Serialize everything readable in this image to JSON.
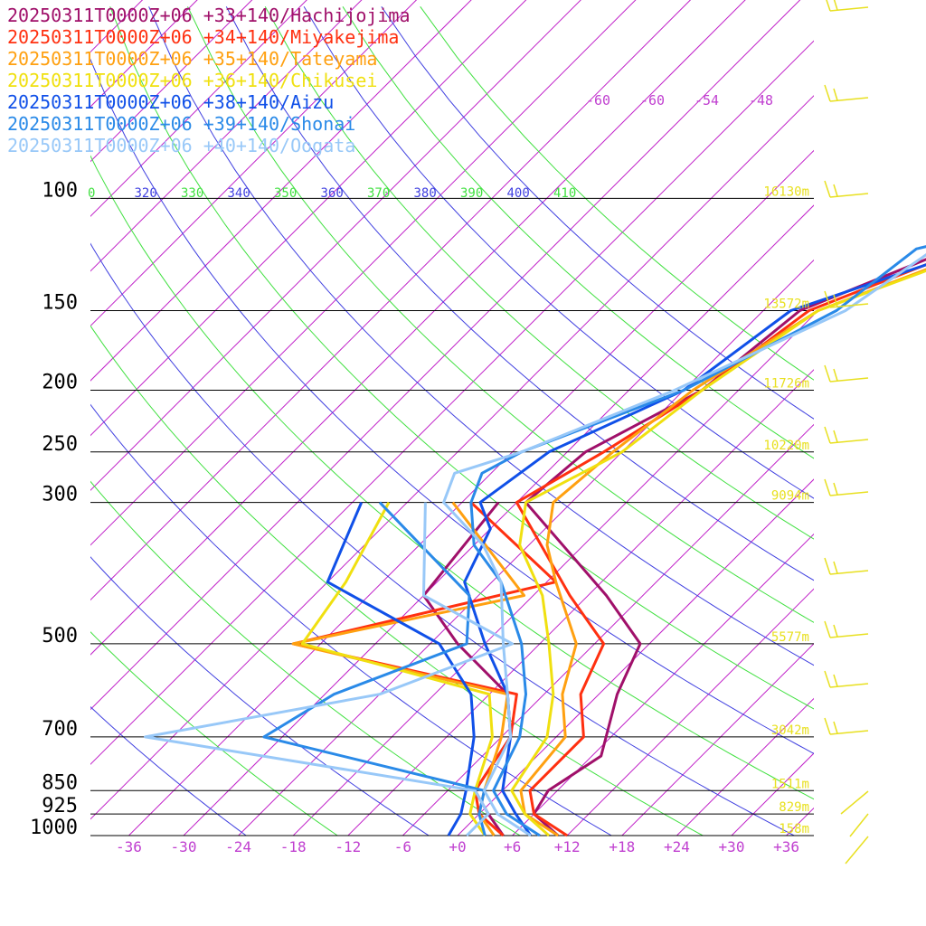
{
  "chart_data": {
    "type": "line",
    "x_ticks": [
      "-36",
      "-30",
      "-24",
      "-18",
      "-12",
      "-6",
      "+0",
      "+6",
      "+12",
      "+18",
      "+24",
      "+30",
      "+36"
    ],
    "pressure_levels": [
      "100",
      "150",
      "200",
      "250",
      "300",
      "500",
      "700",
      "850",
      "925",
      "1000"
    ],
    "height_labels": [
      {
        "p": 100,
        "text": "16130m"
      },
      {
        "p": 150,
        "text": "13572m"
      },
      {
        "p": 200,
        "text": "11726m"
      },
      {
        "p": 250,
        "text": "10220m"
      },
      {
        "p": 300,
        "text": "9094m"
      },
      {
        "p": 500,
        "text": "5577m"
      },
      {
        "p": 700,
        "text": "3042m"
      },
      {
        "p": 850,
        "text": "1511m"
      },
      {
        "p": 925,
        "text": "829m"
      },
      {
        "p": 1000,
        "text": "158m"
      }
    ],
    "theta_labels": [
      "0",
      "320",
      "330",
      "340",
      "350",
      "360",
      "370",
      "380",
      "390",
      "400",
      "410"
    ],
    "upper_isotherm_labels": [
      "-60",
      "-60",
      "-54",
      "-48"
    ],
    "series": [
      {
        "name": "20250311T0000Z+06 +33+140/Hachijojima",
        "color": "#a0106a",
        "temp": [
          [
            1000,
            11
          ],
          [
            925,
            6
          ],
          [
            850,
            5
          ],
          [
            750,
            7
          ],
          [
            600,
            2
          ],
          [
            500,
            -1
          ],
          [
            420,
            -10
          ],
          [
            300,
            -29
          ],
          [
            250,
            -28
          ],
          [
            200,
            -22
          ],
          [
            150,
            -20
          ],
          [
            100,
            -2
          ],
          [
            70,
            14
          ],
          [
            50,
            42
          ]
        ],
        "dew": [
          [
            1000,
            5
          ],
          [
            925,
            1
          ],
          [
            850,
            -3
          ],
          [
            700,
            -5
          ],
          [
            600,
            -10
          ],
          [
            500,
            -21
          ],
          [
            420,
            -30
          ],
          [
            300,
            -32
          ]
        ]
      },
      {
        "name": "20250311T0000Z+06 +34+140/Miyakejima",
        "color": "#ff3010",
        "temp": [
          [
            1000,
            12
          ],
          [
            925,
            6
          ],
          [
            850,
            3
          ],
          [
            700,
            3
          ],
          [
            600,
            -2
          ],
          [
            500,
            -5
          ],
          [
            420,
            -14
          ],
          [
            300,
            -30
          ],
          [
            250,
            -26
          ],
          [
            200,
            -22
          ],
          [
            150,
            -19
          ],
          [
            100,
            0
          ],
          [
            70,
            10
          ],
          [
            50,
            44
          ]
        ],
        "dew": [
          [
            1000,
            5
          ],
          [
            925,
            0
          ],
          [
            850,
            -3
          ],
          [
            700,
            -5
          ],
          [
            600,
            -9
          ],
          [
            500,
            -39
          ],
          [
            400,
            -17
          ],
          [
            300,
            -35
          ]
        ]
      },
      {
        "name": "20250311T0000Z+06 +35+140/Tateyama",
        "color": "#ffa010",
        "temp": [
          [
            1000,
            11
          ],
          [
            925,
            5
          ],
          [
            850,
            2
          ],
          [
            700,
            1
          ],
          [
            600,
            -4
          ],
          [
            500,
            -8
          ],
          [
            400,
            -17
          ],
          [
            350,
            -22
          ],
          [
            300,
            -26
          ],
          [
            250,
            -25
          ],
          [
            200,
            -23
          ],
          [
            150,
            -18
          ],
          [
            100,
            2
          ],
          [
            80,
            10
          ],
          [
            50,
            46
          ]
        ],
        "dew": [
          [
            1000,
            4
          ],
          [
            925,
            0
          ],
          [
            850,
            -2
          ],
          [
            700,
            -6
          ],
          [
            600,
            -10
          ],
          [
            500,
            -39
          ],
          [
            420,
            -19
          ],
          [
            300,
            -37
          ]
        ]
      },
      {
        "name": "20250311T0000Z+06 +36+140/Chikusei",
        "color": "#f0e010",
        "temp": [
          [
            1000,
            10
          ],
          [
            925,
            5
          ],
          [
            850,
            1
          ],
          [
            700,
            -1
          ],
          [
            600,
            -5
          ],
          [
            500,
            -11
          ],
          [
            420,
            -17
          ],
          [
            350,
            -25
          ],
          [
            300,
            -29
          ],
          [
            250,
            -24
          ],
          [
            200,
            -22
          ],
          [
            150,
            -18
          ],
          [
            100,
            3
          ],
          [
            80,
            13
          ],
          [
            50,
            47
          ]
        ],
        "dew": [
          [
            1000,
            3
          ],
          [
            925,
            -1
          ],
          [
            850,
            -3
          ],
          [
            700,
            -7
          ],
          [
            600,
            -12
          ],
          [
            500,
            -38
          ],
          [
            400,
            -40
          ],
          [
            300,
            -44
          ]
        ]
      },
      {
        "name": "20250311T0000Z+06 +38+140/Aizu",
        "color": "#1050e8",
        "temp": [
          [
            1000,
            8
          ],
          [
            925,
            4
          ],
          [
            850,
            0
          ],
          [
            700,
            -5
          ],
          [
            600,
            -10
          ],
          [
            500,
            -18
          ],
          [
            400,
            -27
          ],
          [
            330,
            -30
          ],
          [
            300,
            -34
          ],
          [
            250,
            -32
          ],
          [
            200,
            -24
          ],
          [
            150,
            -21
          ],
          [
            100,
            3
          ],
          [
            70,
            16
          ],
          [
            50,
            49
          ]
        ],
        "dew": [
          [
            1000,
            -1
          ],
          [
            925,
            -2
          ],
          [
            850,
            -4
          ],
          [
            700,
            -9
          ],
          [
            600,
            -14
          ],
          [
            500,
            -23
          ],
          [
            400,
            -42
          ],
          [
            300,
            -47
          ]
        ]
      },
      {
        "name": "20250311T0000Z+06 +39+140/Shonai",
        "color": "#2a8ae8",
        "temp": [
          [
            1000,
            9
          ],
          [
            925,
            3
          ],
          [
            850,
            -1
          ],
          [
            700,
            -4
          ],
          [
            600,
            -8
          ],
          [
            500,
            -14
          ],
          [
            400,
            -23
          ],
          [
            350,
            -30
          ],
          [
            300,
            -35
          ],
          [
            270,
            -37
          ],
          [
            250,
            -35
          ],
          [
            200,
            -24
          ],
          [
            150,
            -16
          ],
          [
            120,
            -14
          ],
          [
            100,
            4
          ],
          [
            70,
            17
          ],
          [
            50,
            51
          ]
        ],
        "dew": [
          [
            1000,
            3
          ],
          [
            925,
            0
          ],
          [
            850,
            -2
          ],
          [
            700,
            -32
          ],
          [
            600,
            -29
          ],
          [
            500,
            -20
          ],
          [
            420,
            -25
          ],
          [
            300,
            -45
          ]
        ]
      },
      {
        "name": "20250311T0000Z+06 +40+140/Oogata",
        "color": "#98c8f8",
        "temp": [
          [
            1000,
            8
          ],
          [
            925,
            2
          ],
          [
            850,
            -2
          ],
          [
            700,
            -5
          ],
          [
            600,
            -10
          ],
          [
            500,
            -16
          ],
          [
            400,
            -23
          ],
          [
            350,
            -29
          ],
          [
            300,
            -38
          ],
          [
            270,
            -40
          ],
          [
            250,
            -35
          ],
          [
            200,
            -25
          ],
          [
            150,
            -15
          ],
          [
            120,
            -12
          ],
          [
            100,
            5
          ],
          [
            70,
            16
          ],
          [
            50,
            52
          ]
        ],
        "dew": [
          [
            1000,
            1
          ],
          [
            925,
            1
          ],
          [
            850,
            -3
          ],
          [
            700,
            -45
          ],
          [
            600,
            -24
          ],
          [
            500,
            -15
          ],
          [
            420,
            -30
          ],
          [
            300,
            -40
          ]
        ]
      }
    ]
  }
}
